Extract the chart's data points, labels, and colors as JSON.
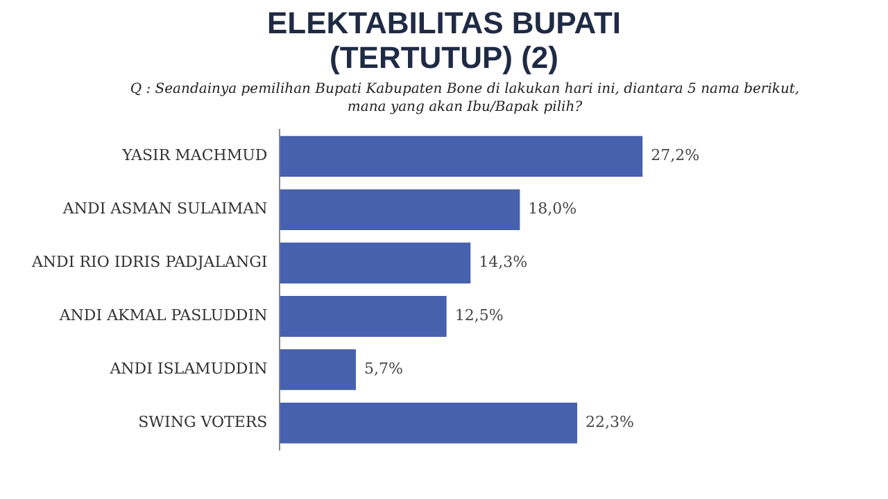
{
  "chart_data": {
    "type": "bar",
    "orientation": "horizontal",
    "title": "ELEKTABILITAS BUPATI (TERTUTUP) (2)",
    "subtitle": "Q : Seandainya pemilihan Bupati Kabupaten Bone di lakukan hari ini, diantara 5 nama berikut, mana yang akan Ibu/Bapak pilih?",
    "categories": [
      "YASIR MACHMUD",
      "ANDI ASMAN SULAIMAN",
      "ANDI RIO IDRIS PADJALANGI",
      "ANDI AKMAL PASLUDDIN",
      "ANDI ISLAMUDDIN",
      "SWING VOTERS"
    ],
    "values": [
      27.2,
      18.0,
      14.3,
      12.5,
      5.7,
      22.3
    ],
    "value_labels": [
      "27,2%",
      "18,0%",
      "14,3%",
      "12,5%",
      "5,7%",
      "22,3%"
    ],
    "color": "#4661ad"
  }
}
